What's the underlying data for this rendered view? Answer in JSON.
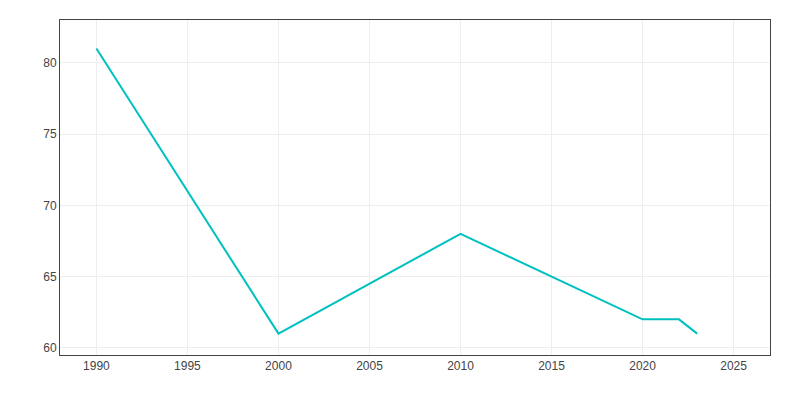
{
  "chart_data": {
    "type": "line",
    "x": [
      1990,
      2000,
      2010,
      2015,
      2020,
      2021,
      2022,
      2023
    ],
    "values": [
      81,
      61,
      68,
      65,
      62,
      62,
      62,
      61
    ],
    "color": "#00c0c0",
    "xlim": [
      1988,
      2027
    ],
    "ylim": [
      59.5,
      83
    ],
    "xticks": [
      1990,
      1995,
      2000,
      2005,
      2010,
      2015,
      2020,
      2025
    ],
    "yticks": [
      60,
      65,
      70,
      75,
      80
    ],
    "grid": true
  }
}
